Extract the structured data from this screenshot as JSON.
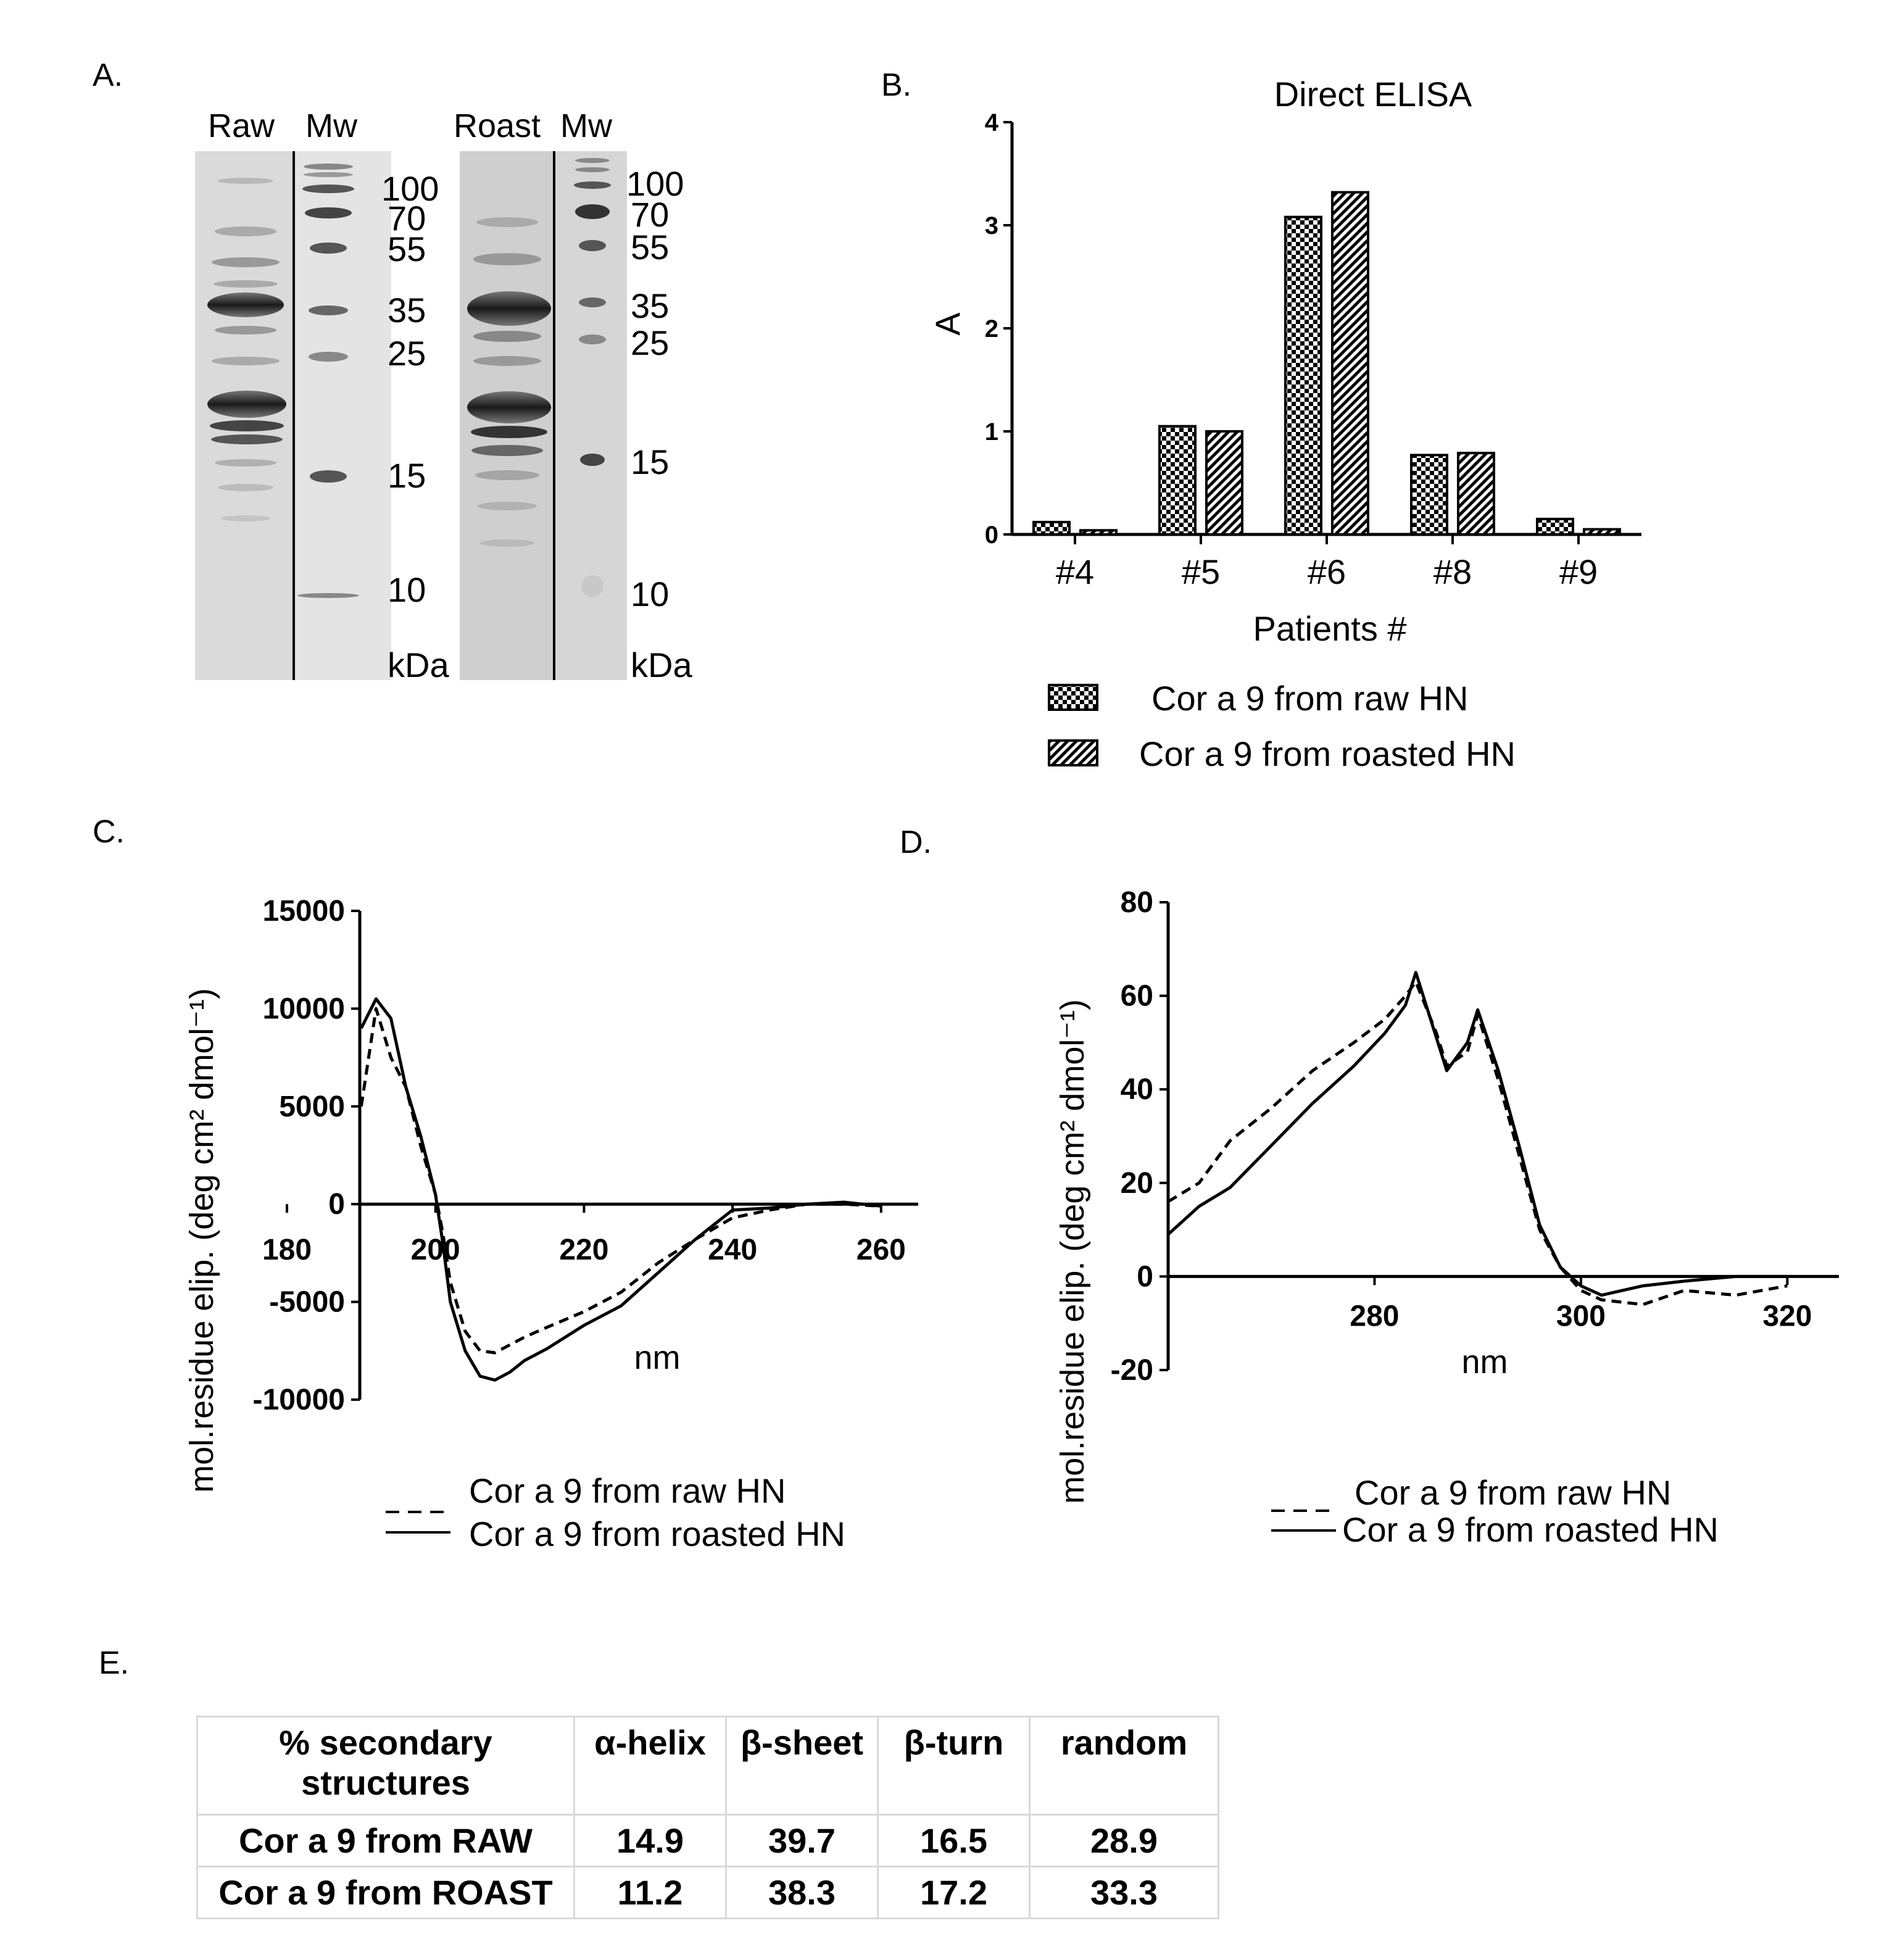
{
  "panels": {
    "a": "A.",
    "b": "B.",
    "c": "C.",
    "d": "D.",
    "e": "E."
  },
  "gel": {
    "raw_label": "Raw",
    "roast_label": "Roast",
    "mw_label": "Mw",
    "unit": "kDa",
    "left_markers": [
      "100",
      "70",
      "55",
      "35",
      "25",
      "15",
      "10"
    ],
    "right_markers": [
      "100",
      "70",
      "55",
      "35",
      "25",
      "15",
      "10"
    ]
  },
  "chart_data": [
    {
      "type": "bar",
      "title": "Direct ELISA",
      "xlabel": "Patients #",
      "ylabel": "A",
      "ylim": [
        0,
        4
      ],
      "yticks": [
        "0",
        "1",
        "2",
        "3",
        "4"
      ],
      "categories": [
        "#4",
        "#5",
        "#6",
        "#8",
        "#9"
      ],
      "series": [
        {
          "name": "Cor a 9 from raw HN",
          "values": [
            0.12,
            1.05,
            3.08,
            0.77,
            0.15
          ],
          "pattern": "checker"
        },
        {
          "name": "Cor a 9 from roasted HN",
          "values": [
            0.04,
            1.0,
            3.32,
            0.79,
            0.05
          ],
          "pattern": "hatch"
        }
      ]
    },
    {
      "type": "line",
      "ylabel": "mol.residue elip. (deg cm² dmol⁻¹)",
      "xlabel": "nm",
      "xlim": [
        180,
        265
      ],
      "ylim": [
        -10000,
        15000
      ],
      "xticks": [
        "180",
        "200",
        "220",
        "240",
        "260"
      ],
      "yticks": [
        "-10000",
        "-5000",
        "0",
        "5000",
        "10000",
        "15000"
      ],
      "x": [
        190,
        192,
        194,
        196,
        198,
        200,
        201,
        202,
        204,
        206,
        208,
        210,
        212,
        215,
        220,
        225,
        230,
        235,
        240,
        245,
        250,
        255,
        260
      ],
      "series": [
        {
          "name": "Cor a 9 from raw HN",
          "style": "dashed",
          "values": [
            5000,
            10000,
            7500,
            6000,
            3000,
            500,
            -1500,
            -4000,
            -6500,
            -7500,
            -7600,
            -7200,
            -6800,
            -6300,
            -5500,
            -4500,
            -3000,
            -1800,
            -700,
            -300,
            0,
            0,
            -100
          ]
        },
        {
          "name": "Cor a 9 from roasted HN",
          "style": "solid",
          "values": [
            9000,
            10500,
            9500,
            6000,
            3500,
            500,
            -2000,
            -5000,
            -7500,
            -8800,
            -9000,
            -8600,
            -8000,
            -7400,
            -6200,
            -5200,
            -3500,
            -1800,
            -300,
            -200,
            0,
            100,
            -100
          ]
        }
      ],
      "legend": [
        "Cor a 9 from raw HN",
        "Cor a 9 from roasted HN"
      ]
    },
    {
      "type": "line",
      "ylabel": "mol.residue elip. (deg cm² dmol⁻¹)",
      "xlabel": "nm",
      "xlim": [
        260,
        325
      ],
      "ylim": [
        -20,
        80
      ],
      "xticks": [
        "280",
        "300",
        "320"
      ],
      "yticks": [
        "-20",
        "0",
        "20",
        "40",
        "60",
        "80"
      ],
      "x": [
        260,
        263,
        266,
        270,
        274,
        278,
        281,
        283,
        284,
        286,
        287,
        289,
        290,
        292,
        294,
        296,
        298,
        300,
        302,
        306,
        310,
        315,
        320
      ],
      "series": [
        {
          "name": "Cor a 9 from raw HN",
          "style": "dashed",
          "values": [
            16,
            20,
            29,
            36,
            44,
            50,
            55,
            60,
            63,
            52,
            45,
            48,
            56,
            42,
            26,
            10,
            2,
            -3,
            -5,
            -6,
            -3,
            -4,
            -2
          ]
        },
        {
          "name": "Cor a 9 from roasted HN",
          "style": "solid",
          "values": [
            9,
            15,
            19,
            28,
            37,
            45,
            52,
            58,
            65,
            51,
            44,
            50,
            57,
            44,
            28,
            11,
            2,
            -2,
            -4,
            -2,
            -1,
            0,
            0
          ]
        }
      ],
      "legend": [
        "Cor a 9 from raw HN",
        "Cor a 9 from roasted HN"
      ]
    },
    {
      "type": "table",
      "headers": [
        "% secondary structures",
        "α-helix",
        "β-sheet",
        "β-turn",
        "random"
      ],
      "rows": [
        [
          "Cor a 9 from RAW",
          "14.9",
          "39.7",
          "16.5",
          "28.9"
        ],
        [
          "Cor a 9 from ROAST",
          "11.2",
          "38.3",
          "17.2",
          "33.3"
        ]
      ]
    }
  ]
}
